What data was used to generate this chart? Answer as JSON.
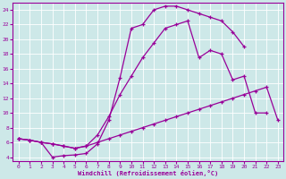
{
  "xlabel": "Windchill (Refroidissement éolien,°C)",
  "background_color": "#cde8e8",
  "line_color": "#990099",
  "grid_color": "#ffffff",
  "xlim": [
    -0.5,
    23.5
  ],
  "ylim": [
    3.5,
    25
  ],
  "yticks": [
    4,
    6,
    8,
    10,
    12,
    14,
    16,
    18,
    20,
    22,
    24
  ],
  "xticks": [
    0,
    1,
    2,
    3,
    4,
    5,
    6,
    7,
    8,
    9,
    10,
    11,
    12,
    13,
    14,
    15,
    16,
    17,
    18,
    19,
    20,
    21,
    22,
    23
  ],
  "line1_x": [
    0,
    1,
    2,
    3,
    4,
    5,
    6,
    7,
    8,
    9,
    10,
    11,
    12,
    13,
    14,
    15,
    16,
    17,
    18,
    19,
    20,
    21,
    22,
    23
  ],
  "line1_y": [
    6.5,
    6.3,
    6.0,
    4.0,
    4.2,
    4.3,
    4.5,
    5.8,
    9.0,
    14.8,
    21.5,
    22.0,
    24.0,
    24.5,
    24.5,
    24.0,
    23.5,
    23.0,
    22.5,
    21.0,
    19.0,
    null,
    null,
    null
  ],
  "line2_x": [
    0,
    1,
    2,
    3,
    4,
    5,
    6,
    7,
    8,
    9,
    10,
    11,
    12,
    13,
    14,
    15,
    16,
    17,
    18,
    19,
    20,
    21,
    22,
    23
  ],
  "line2_y": [
    6.5,
    6.3,
    6.0,
    5.8,
    5.5,
    5.2,
    5.5,
    7.0,
    9.5,
    12.5,
    15.0,
    17.5,
    19.5,
    21.5,
    22.0,
    22.5,
    17.5,
    18.5,
    18.0,
    14.5,
    15.0,
    10.0,
    10.0,
    null
  ],
  "line3_x": [
    0,
    1,
    2,
    3,
    4,
    5,
    6,
    7,
    8,
    9,
    10,
    11,
    12,
    13,
    14,
    15,
    16,
    17,
    18,
    19,
    20,
    21,
    22,
    23
  ],
  "line3_y": [
    6.5,
    6.3,
    6.0,
    5.8,
    5.5,
    5.2,
    5.5,
    6.0,
    6.5,
    7.0,
    7.5,
    8.0,
    8.5,
    9.0,
    9.5,
    10.0,
    10.5,
    11.0,
    11.5,
    12.0,
    12.5,
    13.0,
    13.5,
    9.0
  ]
}
